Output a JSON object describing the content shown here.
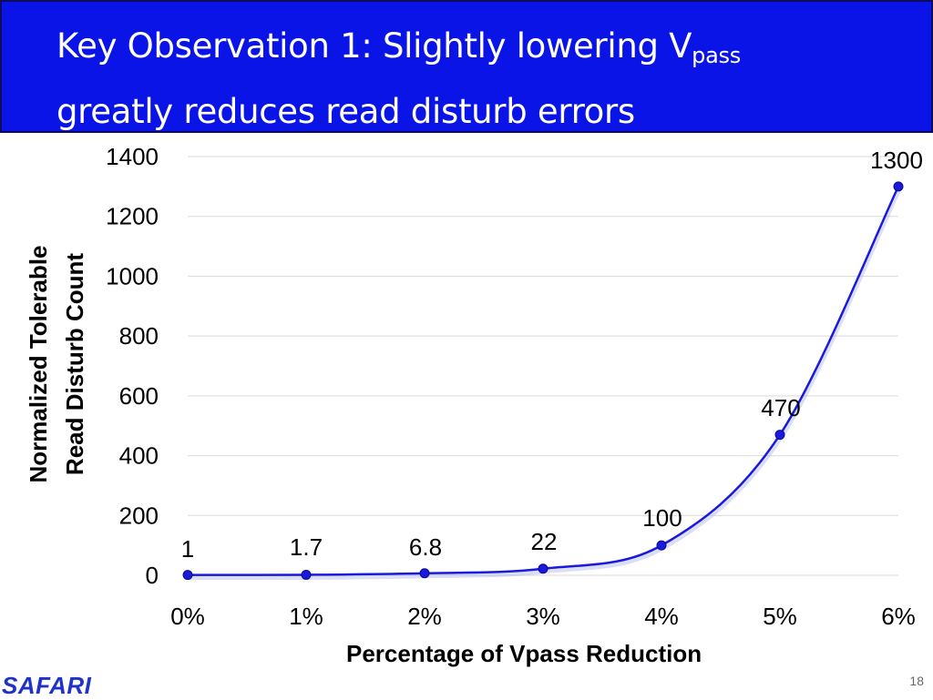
{
  "slide": {
    "title_line1": "Key Observation 1: Slightly lowering V",
    "title_sub": "pass",
    "title_line2": "greatly reduces read disturb errors",
    "logo": "SAFARI",
    "page_number": "18"
  },
  "chart_data": {
    "type": "line",
    "x": [
      "0%",
      "1%",
      "2%",
      "3%",
      "4%",
      "5%",
      "6%"
    ],
    "values": [
      1,
      1.7,
      6.8,
      22,
      100,
      470,
      1300
    ],
    "data_labels": [
      "1",
      "1.7",
      "6.8",
      "22",
      "100",
      "470",
      "1300"
    ],
    "xlabel": "Percentage of Vpass Reduction",
    "ylabel_line1": "Normalized Tolerable",
    "ylabel_line2": "Read Disturb Count",
    "ylim": [
      0,
      1400
    ],
    "yticks": [
      0,
      200,
      400,
      600,
      800,
      1000,
      1200,
      1400
    ],
    "ytick_labels": [
      "0",
      "200",
      "400",
      "600",
      "800",
      "1000",
      "1200",
      "1400"
    ],
    "grid": true,
    "legend": "none",
    "line_color": "#1a1adc",
    "marker": "circle"
  }
}
